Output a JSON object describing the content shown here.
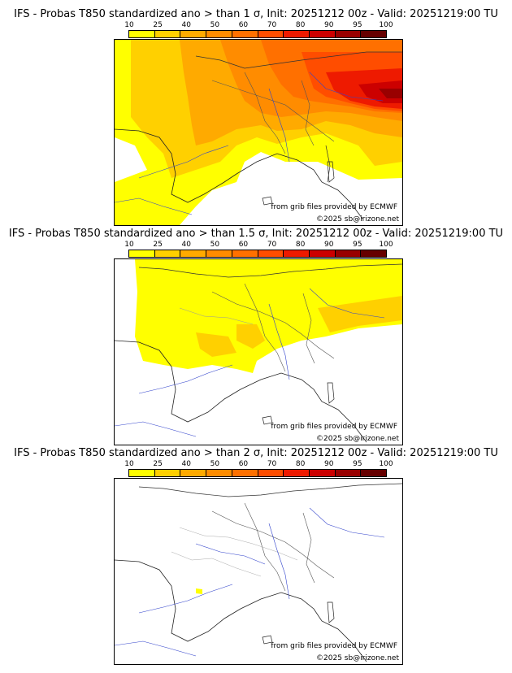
{
  "colorbar": {
    "labels": [
      "10",
      "25",
      "40",
      "50",
      "60",
      "70",
      "80",
      "90",
      "95",
      "100"
    ],
    "colors": [
      "#ffff00",
      "#ffd000",
      "#ffaa00",
      "#ff8c00",
      "#ff7000",
      "#ff4d00",
      "#ee1a00",
      "#cc0000",
      "#990000",
      "#660000"
    ]
  },
  "panels": [
    {
      "title": "IFS - Probas T850  standardized ano > than 1 σ, Init: 20251212 00z - Valid: 20251219:00 TU",
      "source_credit": "from grib files provided by ECMWF",
      "copyright": "©2025 sb@irizone.net"
    },
    {
      "title": "IFS - Probas T850  standardized ano > than 1.5 σ, Init: 20251212 00z - Valid: 20251219:00 TU",
      "source_credit": "from grib files provided by ECMWF",
      "copyright": "©2025 sb@irizone.net"
    },
    {
      "title": "IFS - Probas T850  standardized ano > than 2 σ, Init: 20251212 00z - Valid: 20251219:00 TU",
      "source_credit": "from grib files provided by ECMWF",
      "copyright": "©2025 sb@irizone.net"
    }
  ]
}
